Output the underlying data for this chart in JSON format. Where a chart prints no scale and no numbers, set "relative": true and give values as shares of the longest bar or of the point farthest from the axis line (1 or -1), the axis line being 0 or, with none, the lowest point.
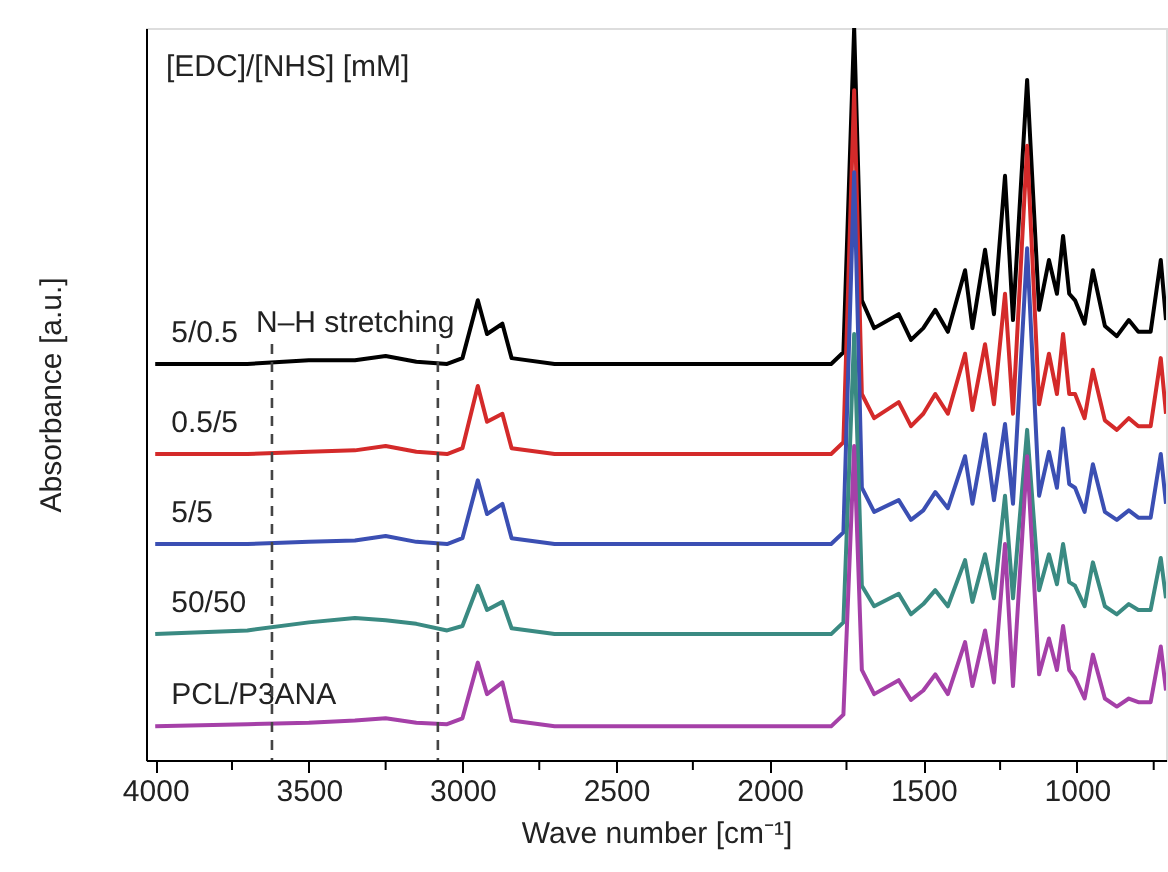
{
  "chart_data": {
    "type": "line",
    "relative": true,
    "xlabel": "Wave number [cm⁻¹]",
    "ylabel": "Absorbance [a.u.]",
    "legend_title": "[EDC]/[NHS] [mM]",
    "annotations": [
      "N–H stretching"
    ],
    "xlim": [
      4030,
      710
    ],
    "xticks": [
      4000,
      {
        "value": 3750,
        "label": null
      },
      3500,
      {
        "value": 3250,
        "label": null
      },
      3000,
      {
        "value": 2750,
        "label": null
      },
      2500,
      {
        "value": 2250,
        "label": null
      },
      2000,
      {
        "value": 1750,
        "label": null
      },
      1500,
      {
        "value": 1250,
        "label": null
      },
      1000,
      {
        "value": 750,
        "label": null
      }
    ],
    "tick_labels": "x",
    "grid": false,
    "legend": false,
    "line_style": "solid",
    "marker": "none",
    "ref_lines": [
      {
        "axis": "x",
        "value": 3620,
        "color": "#444444",
        "line_style": "dashed"
      },
      {
        "axis": "x",
        "value": 3080,
        "color": "#444444",
        "line_style": "dashed"
      }
    ],
    "x": [
      4000,
      3700,
      3500,
      3350,
      3250,
      3150,
      3050,
      3000,
      2950,
      2920,
      2870,
      2840,
      2700,
      2200,
      1800,
      1760,
      1725,
      1700,
      1660,
      1580,
      1540,
      1500,
      1461,
      1420,
      1364,
      1340,
      1299,
      1270,
      1234,
      1208,
      1162,
      1123,
      1091,
      1065,
      1045,
      1025,
      1006,
      975,
      948,
      909,
      870,
      831,
      800,
      760,
      727,
      710
    ],
    "series": [
      {
        "name": "5/0.5",
        "color": "#000000",
        "values": [
          0.541,
          0.541,
          0.546,
          0.546,
          0.552,
          0.544,
          0.541,
          0.549,
          0.628,
          0.582,
          0.596,
          0.549,
          0.541,
          0.541,
          0.541,
          0.557,
          1.0,
          0.628,
          0.59,
          0.609,
          0.574,
          0.59,
          0.615,
          0.585,
          0.669,
          0.59,
          0.697,
          0.609,
          0.798,
          0.601,
          0.929,
          0.615,
          0.683,
          0.637,
          0.716,
          0.637,
          0.628,
          0.596,
          0.669,
          0.593,
          0.579,
          0.601,
          0.585,
          0.585,
          0.683,
          0.601
        ]
      },
      {
        "name": "0.5/5",
        "color": "#d42a2a",
        "values": [
          0.418,
          0.418,
          0.421,
          0.423,
          0.429,
          0.421,
          0.418,
          0.426,
          0.511,
          0.462,
          0.473,
          0.426,
          0.418,
          0.418,
          0.418,
          0.434,
          0.915,
          0.5,
          0.467,
          0.489,
          0.456,
          0.473,
          0.5,
          0.473,
          0.555,
          0.478,
          0.568,
          0.486,
          0.637,
          0.473,
          0.839,
          0.486,
          0.555,
          0.5,
          0.582,
          0.5,
          0.5,
          0.467,
          0.533,
          0.464,
          0.451,
          0.467,
          0.456,
          0.456,
          0.549,
          0.473
        ]
      },
      {
        "name": "5/5",
        "color": "#3b4fb3",
        "values": [
          0.295,
          0.295,
          0.298,
          0.3,
          0.306,
          0.298,
          0.295,
          0.303,
          0.382,
          0.336,
          0.35,
          0.303,
          0.295,
          0.295,
          0.295,
          0.311,
          0.803,
          0.372,
          0.339,
          0.355,
          0.328,
          0.341,
          0.366,
          0.344,
          0.415,
          0.35,
          0.445,
          0.355,
          0.459,
          0.35,
          0.699,
          0.361,
          0.421,
          0.372,
          0.453,
          0.377,
          0.372,
          0.339,
          0.404,
          0.339,
          0.328,
          0.341,
          0.331,
          0.331,
          0.418,
          0.35
        ]
      },
      {
        "name": "50/50",
        "color": "#3a8a82",
        "values": [
          0.172,
          0.177,
          0.188,
          0.194,
          0.191,
          0.186,
          0.177,
          0.183,
          0.238,
          0.205,
          0.216,
          0.18,
          0.172,
          0.172,
          0.172,
          0.188,
          0.582,
          0.238,
          0.21,
          0.227,
          0.199,
          0.213,
          0.232,
          0.21,
          0.273,
          0.216,
          0.281,
          0.221,
          0.361,
          0.221,
          0.451,
          0.232,
          0.281,
          0.24,
          0.295,
          0.243,
          0.238,
          0.21,
          0.27,
          0.21,
          0.199,
          0.213,
          0.205,
          0.205,
          0.276,
          0.221
        ]
      },
      {
        "name": "PCL/P3ANA",
        "color": "#a540a8",
        "values": [
          0.046,
          0.049,
          0.051,
          0.054,
          0.057,
          0.051,
          0.049,
          0.057,
          0.133,
          0.09,
          0.106,
          0.054,
          0.046,
          0.046,
          0.046,
          0.062,
          0.429,
          0.123,
          0.09,
          0.109,
          0.082,
          0.095,
          0.117,
          0.09,
          0.161,
          0.101,
          0.177,
          0.106,
          0.295,
          0.101,
          0.415,
          0.117,
          0.166,
          0.123,
          0.183,
          0.123,
          0.112,
          0.084,
          0.144,
          0.084,
          0.073,
          0.084,
          0.079,
          0.079,
          0.155,
          0.095
        ]
      }
    ]
  }
}
